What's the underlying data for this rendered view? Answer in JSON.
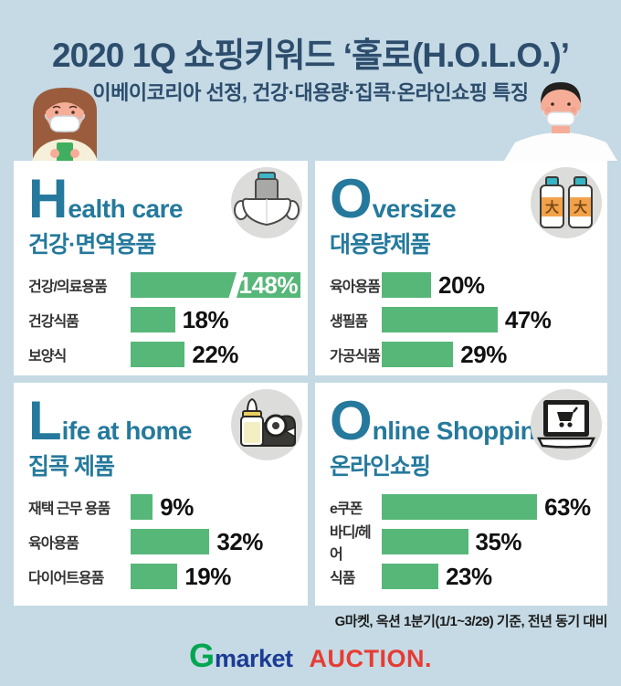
{
  "header": {
    "title": "2020 1Q 쇼핑키워드 ‘홀로(H.O.L.O.)’",
    "subtitle": "이베이코리아 선정, 건강·대용량·집콕·온라인쇼핑 특징"
  },
  "colors": {
    "background": "#c5dae5",
    "panel": "#ffffff",
    "bar_green": "#57b779",
    "heading_teal": "#25799c",
    "title_navy": "#2d4d6d",
    "icon_circle_gray": "#dcdcda",
    "gmarket_green": "#00a650",
    "gmarket_navy": "#1c3c94",
    "auction_red": "#e73c33"
  },
  "panels": [
    {
      "initial": "H",
      "title_rest": "ealth care",
      "subtitle": "건강·면역용품",
      "icon": "face-mask-and-medicine-bottle-icon",
      "bars": [
        {
          "label": "건강/의료용품",
          "value": 148,
          "display": "148%",
          "broken": true
        },
        {
          "label": "건강식품",
          "value": 18,
          "display": "18%"
        },
        {
          "label": "보양식",
          "value": 22,
          "display": "22%"
        }
      ]
    },
    {
      "initial": "O",
      "title_rest": "versize",
      "subtitle": "대용량제품",
      "icon": "two-large-bottles-icon",
      "icon_label": "大",
      "bars": [
        {
          "label": "육아용품",
          "value": 20,
          "display": "20%"
        },
        {
          "label": "생필품",
          "value": 47,
          "display": "47%"
        },
        {
          "label": "가공식품",
          "value": 29,
          "display": "29%"
        }
      ]
    },
    {
      "initial": "L",
      "title_rest": "ife at home",
      "subtitle": "집콕 제품",
      "icon": "baby-bottle-and-tape-dispenser-icon",
      "bars": [
        {
          "label": "재택 근무 용품",
          "value": 9,
          "display": "9%"
        },
        {
          "label": "육아용품",
          "value": 32,
          "display": "32%"
        },
        {
          "label": "다이어트용품",
          "value": 19,
          "display": "19%"
        }
      ]
    },
    {
      "initial": "O",
      "title_rest": "nline Shopping",
      "subtitle": "온라인쇼핑",
      "icon": "laptop-with-shopping-cart-icon",
      "bars": [
        {
          "label": "e쿠폰",
          "value": 63,
          "display": "63%"
        },
        {
          "label": "바디/헤어",
          "value": 35,
          "display": "35%"
        },
        {
          "label": "식품",
          "value": 23,
          "display": "23%"
        }
      ]
    }
  ],
  "chart_data": [
    {
      "type": "bar",
      "orientation": "horizontal",
      "title": "Health care 건강·면역용품",
      "categories": [
        "건강/의료용품",
        "건강식품",
        "보양식"
      ],
      "values": [
        148,
        18,
        22
      ],
      "unit": "%",
      "bar_color": "#57b779",
      "note": "148% bar drawn truncated with a white diagonal break, value shown in white inside bar"
    },
    {
      "type": "bar",
      "orientation": "horizontal",
      "title": "Oversize 대용량제품",
      "categories": [
        "육아용품",
        "생필품",
        "가공식품"
      ],
      "values": [
        20,
        47,
        29
      ],
      "unit": "%",
      "bar_color": "#57b779"
    },
    {
      "type": "bar",
      "orientation": "horizontal",
      "title": "Life at home 집콕 제품",
      "categories": [
        "재택 근무 용품",
        "육아용품",
        "다이어트용품"
      ],
      "values": [
        9,
        32,
        19
      ],
      "unit": "%",
      "bar_color": "#57b779"
    },
    {
      "type": "bar",
      "orientation": "horizontal",
      "title": "Online Shopping 온라인쇼핑",
      "categories": [
        "e쿠폰",
        "바디/헤어",
        "식품"
      ],
      "values": [
        63,
        35,
        23
      ],
      "unit": "%",
      "bar_color": "#57b779"
    }
  ],
  "footnote": "G마켓, 옥션 1분기(1/1~3/29) 기준, 전년 동기 대비",
  "logos": {
    "gmarket_g": "G",
    "gmarket_rest": "market",
    "auction": "AUCTION."
  }
}
